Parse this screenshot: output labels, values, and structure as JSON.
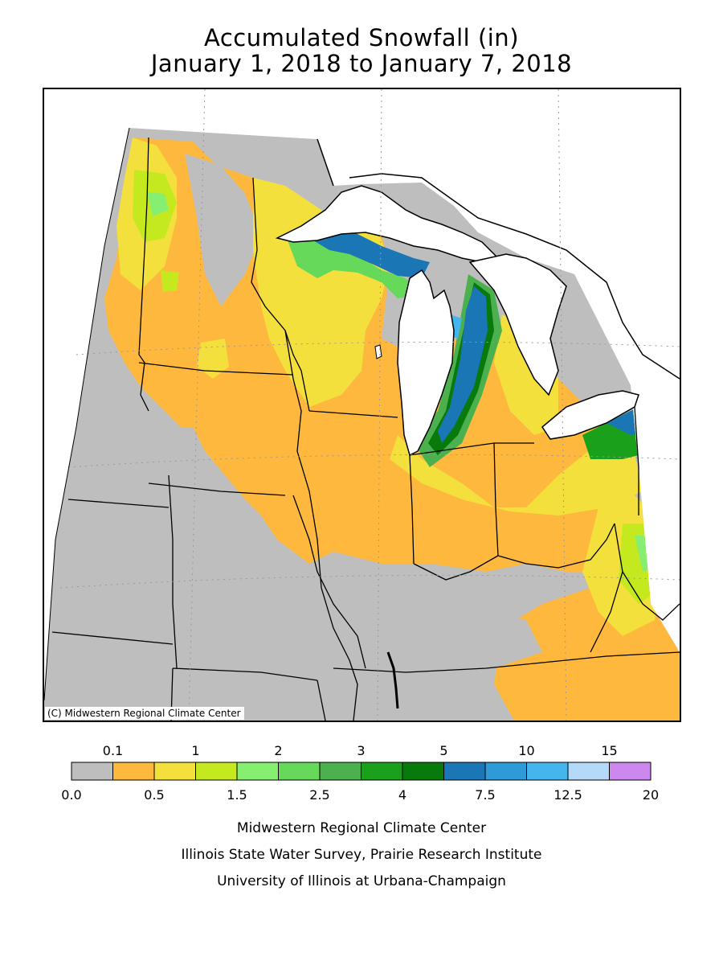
{
  "title": {
    "line1": "Accumulated Snowfall (in)",
    "line2": "January 1, 2018 to January 7, 2018"
  },
  "map": {
    "copyright": "(C) Midwestern Regional Climate Center",
    "region": "Midwest United States",
    "fill_colors": {
      "trace": "#bebebe",
      "light_orange": "#fdb83d",
      "yellow": "#f4e03c",
      "lime": "#c4ea1f",
      "light_green": "#86ee70",
      "green": "#66d95a",
      "mid_green": "#4bb04d",
      "dark_green": "#1aa01a",
      "darker_green": "#077a0b",
      "steel_blue": "#1b76b5",
      "blue": "#2f9ad8",
      "sky_blue": "#45b5ee",
      "pale_blue": "#b5d9f8",
      "lake": "#ffffff",
      "border": "#000000"
    }
  },
  "legend": {
    "top_labels": [
      "0.1",
      "1",
      "2",
      "3",
      "5",
      "10",
      "15"
    ],
    "bottom_labels": [
      "0.0",
      "0.5",
      "1.5",
      "2.5",
      "4",
      "7.5",
      "12.5",
      "20"
    ],
    "colors": [
      "#bebebe",
      "#fdb83d",
      "#f4e03c",
      "#c4ea1f",
      "#86ee70",
      "#66d95a",
      "#4bb04d",
      "#1aa01a",
      "#077a0b",
      "#1b76b5",
      "#2f9ad8",
      "#45b5ee",
      "#b5d9f8",
      "#cc88ee"
    ]
  },
  "credits": {
    "line1": "Midwestern Regional Climate Center",
    "line2": "Illinois State Water Survey, Prairie Research Institute",
    "line3": "University of Illinois at Urbana-Champaign"
  }
}
